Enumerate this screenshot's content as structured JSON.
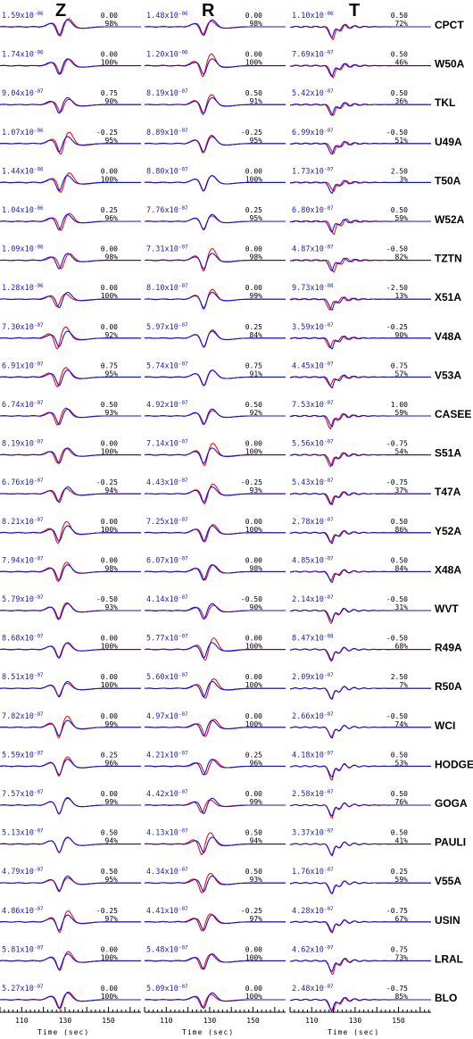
{
  "chart_data": {
    "type": "line",
    "components": [
      "Z",
      "R",
      "T"
    ],
    "xlabel": "Time (sec)",
    "x_ticks": [
      110,
      130,
      150
    ],
    "series_legend": [
      {
        "name": "",
        "color": "#1111ee"
      },
      {
        "name": "",
        "color": "#ee1111"
      }
    ],
    "stations": [
      {
        "name": "CPCT",
        "Z": {
          "amp": "1.59x10",
          "exp": "-06",
          "shift": "0.00",
          "fit": "98%"
        },
        "R": {
          "amp": "1.48x10",
          "exp": "-06",
          "shift": "0.00",
          "fit": "98%"
        },
        "T": {
          "amp": "1.10x10",
          "exp": "-06",
          "shift": "0.50",
          "fit": "72%"
        }
      },
      {
        "name": "W50A",
        "Z": {
          "amp": "1.74x10",
          "exp": "-06",
          "shift": "0.00",
          "fit": "100%"
        },
        "R": {
          "amp": "1.20x10",
          "exp": "-06",
          "shift": "0.00",
          "fit": "100%"
        },
        "T": {
          "amp": "7.69x10",
          "exp": "-07",
          "shift": "0.50",
          "fit": "46%"
        }
      },
      {
        "name": "TKL",
        "Z": {
          "amp": "9.04x10",
          "exp": "-07",
          "shift": "0.75",
          "fit": "90%"
        },
        "R": {
          "amp": "8.19x10",
          "exp": "-07",
          "shift": "0.50",
          "fit": "91%"
        },
        "T": {
          "amp": "5.42x10",
          "exp": "-07",
          "shift": "0.50",
          "fit": "36%"
        }
      },
      {
        "name": "U49A",
        "Z": {
          "amp": "1.07x10",
          "exp": "-06",
          "shift": "-0.25",
          "fit": "95%"
        },
        "R": {
          "amp": "8.89x10",
          "exp": "-07",
          "shift": "-0.25",
          "fit": "95%"
        },
        "T": {
          "amp": "6.99x10",
          "exp": "-07",
          "shift": "-0.50",
          "fit": "51%"
        }
      },
      {
        "name": "T50A",
        "Z": {
          "amp": "1.44x10",
          "exp": "-06",
          "shift": "0.00",
          "fit": "100%"
        },
        "R": {
          "amp": "8.80x10",
          "exp": "-07",
          "shift": "0.00",
          "fit": "100%"
        },
        "T": {
          "amp": "1.73x10",
          "exp": "-07",
          "shift": "2.50",
          "fit": "3%"
        }
      },
      {
        "name": "W52A",
        "Z": {
          "amp": "1.04x10",
          "exp": "-06",
          "shift": "0.25",
          "fit": "96%"
        },
        "R": {
          "amp": "7.76x10",
          "exp": "-07",
          "shift": "0.25",
          "fit": "95%"
        },
        "T": {
          "amp": "6.80x10",
          "exp": "-07",
          "shift": "0.50",
          "fit": "59%"
        }
      },
      {
        "name": "TZTN",
        "Z": {
          "amp": "1.09x10",
          "exp": "-06",
          "shift": "0.00",
          "fit": "98%"
        },
        "R": {
          "amp": "7.31x10",
          "exp": "-07",
          "shift": "0.00",
          "fit": "98%"
        },
        "T": {
          "amp": "4.87x10",
          "exp": "-07",
          "shift": "-0.50",
          "fit": "82%"
        }
      },
      {
        "name": "X51A",
        "Z": {
          "amp": "1.28x10",
          "exp": "-06",
          "shift": "0.00",
          "fit": "100%"
        },
        "R": {
          "amp": "8.10x10",
          "exp": "-07",
          "shift": "0.00",
          "fit": "99%"
        },
        "T": {
          "amp": "9.73x10",
          "exp": "-08",
          "shift": "-2.50",
          "fit": "13%"
        }
      },
      {
        "name": "V48A",
        "Z": {
          "amp": "7.30x10",
          "exp": "-07",
          "shift": "0.00",
          "fit": "92%"
        },
        "R": {
          "amp": "5.97x10",
          "exp": "-07",
          "shift": "0.25",
          "fit": "84%"
        },
        "T": {
          "amp": "3.59x10",
          "exp": "-07",
          "shift": "-0.25",
          "fit": "90%"
        }
      },
      {
        "name": "V53A",
        "Z": {
          "amp": "6.91x10",
          "exp": "-07",
          "shift": "0.75",
          "fit": "95%"
        },
        "R": {
          "amp": "5.74x10",
          "exp": "-07",
          "shift": "0.75",
          "fit": "91%"
        },
        "T": {
          "amp": "4.45x10",
          "exp": "-07",
          "shift": "0.75",
          "fit": "57%"
        }
      },
      {
        "name": "CASEE",
        "Z": {
          "amp": "6.74x10",
          "exp": "-07",
          "shift": "0.50",
          "fit": "93%"
        },
        "R": {
          "amp": "4.92x10",
          "exp": "-07",
          "shift": "0.50",
          "fit": "92%"
        },
        "T": {
          "amp": "7.53x10",
          "exp": "-07",
          "shift": "1.00",
          "fit": "59%"
        }
      },
      {
        "name": "S51A",
        "Z": {
          "amp": "8.19x10",
          "exp": "-07",
          "shift": "0.00",
          "fit": "100%"
        },
        "R": {
          "amp": "7.14x10",
          "exp": "-07",
          "shift": "0.00",
          "fit": "100%"
        },
        "T": {
          "amp": "5.56x10",
          "exp": "-07",
          "shift": "-0.75",
          "fit": "54%"
        }
      },
      {
        "name": "T47A",
        "Z": {
          "amp": "6.76x10",
          "exp": "-07",
          "shift": "-0.25",
          "fit": "94%"
        },
        "R": {
          "amp": "4.43x10",
          "exp": "-07",
          "shift": "-0.25",
          "fit": "93%"
        },
        "T": {
          "amp": "5.43x10",
          "exp": "-07",
          "shift": "-0.75",
          "fit": "37%"
        }
      },
      {
        "name": "Y52A",
        "Z": {
          "amp": "8.21x10",
          "exp": "-07",
          "shift": "0.00",
          "fit": "100%"
        },
        "R": {
          "amp": "7.25x10",
          "exp": "-07",
          "shift": "0.00",
          "fit": "100%"
        },
        "T": {
          "amp": "2.78x10",
          "exp": "-07",
          "shift": "0.50",
          "fit": "86%"
        }
      },
      {
        "name": "X48A",
        "Z": {
          "amp": "7.94x10",
          "exp": "-07",
          "shift": "0.00",
          "fit": "98%"
        },
        "R": {
          "amp": "6.07x10",
          "exp": "-07",
          "shift": "0.00",
          "fit": "98%"
        },
        "T": {
          "amp": "4.85x10",
          "exp": "-07",
          "shift": "0.50",
          "fit": "84%"
        }
      },
      {
        "name": "WVT",
        "Z": {
          "amp": "5.79x10",
          "exp": "-07",
          "shift": "-0.50",
          "fit": "93%"
        },
        "R": {
          "amp": "4.14x10",
          "exp": "-07",
          "shift": "-0.50",
          "fit": "90%"
        },
        "T": {
          "amp": "2.14x10",
          "exp": "-07",
          "shift": "-0.50",
          "fit": "31%"
        }
      },
      {
        "name": "R49A",
        "Z": {
          "amp": "8.68x10",
          "exp": "-07",
          "shift": "0.00",
          "fit": "100%"
        },
        "R": {
          "amp": "5.77x10",
          "exp": "-07",
          "shift": "0.00",
          "fit": "100%"
        },
        "T": {
          "amp": "8.47x10",
          "exp": "-08",
          "shift": "-0.50",
          "fit": "68%"
        }
      },
      {
        "name": "R50A",
        "Z": {
          "amp": "8.51x10",
          "exp": "-07",
          "shift": "0.00",
          "fit": "100%"
        },
        "R": {
          "amp": "5.60x10",
          "exp": "-07",
          "shift": "0.00",
          "fit": "100%"
        },
        "T": {
          "amp": "2.09x10",
          "exp": "-07",
          "shift": "2.50",
          "fit": "7%"
        }
      },
      {
        "name": "WCI",
        "Z": {
          "amp": "7.82x10",
          "exp": "-07",
          "shift": "0.00",
          "fit": "99%"
        },
        "R": {
          "amp": "4.97x10",
          "exp": "-07",
          "shift": "0.00",
          "fit": "100%"
        },
        "T": {
          "amp": "2.66x10",
          "exp": "-07",
          "shift": "-0.50",
          "fit": "74%"
        }
      },
      {
        "name": "HODGE",
        "Z": {
          "amp": "5.59x10",
          "exp": "-07",
          "shift": "0.25",
          "fit": "96%"
        },
        "R": {
          "amp": "4.21x10",
          "exp": "-07",
          "shift": "0.25",
          "fit": "96%"
        },
        "T": {
          "amp": "4.18x10",
          "exp": "-07",
          "shift": "0.50",
          "fit": "53%"
        }
      },
      {
        "name": "GOGA",
        "Z": {
          "amp": "7.57x10",
          "exp": "-07",
          "shift": "0.00",
          "fit": "99%"
        },
        "R": {
          "amp": "4.42x10",
          "exp": "-07",
          "shift": "0.00",
          "fit": "99%"
        },
        "T": {
          "amp": "2.58x10",
          "exp": "-07",
          "shift": "0.50",
          "fit": "76%"
        }
      },
      {
        "name": "PAULI",
        "Z": {
          "amp": "5.13x10",
          "exp": "-07",
          "shift": "0.50",
          "fit": "94%"
        },
        "R": {
          "amp": "4.13x10",
          "exp": "-07",
          "shift": "0.50",
          "fit": "94%"
        },
        "T": {
          "amp": "3.37x10",
          "exp": "-07",
          "shift": "0.50",
          "fit": "41%"
        }
      },
      {
        "name": "V55A",
        "Z": {
          "amp": "4.79x10",
          "exp": "-07",
          "shift": "0.50",
          "fit": "95%"
        },
        "R": {
          "amp": "4.34x10",
          "exp": "-07",
          "shift": "0.50",
          "fit": "93%"
        },
        "T": {
          "amp": "1.76x10",
          "exp": "-07",
          "shift": "0.25",
          "fit": "59%"
        }
      },
      {
        "name": "USIN",
        "Z": {
          "amp": "4.86x10",
          "exp": "-07",
          "shift": "-0.25",
          "fit": "97%"
        },
        "R": {
          "amp": "4.41x10",
          "exp": "-07",
          "shift": "-0.25",
          "fit": "97%"
        },
        "T": {
          "amp": "4.28x10",
          "exp": "-07",
          "shift": "-0.75",
          "fit": "67%"
        }
      },
      {
        "name": "LRAL",
        "Z": {
          "amp": "5.81x10",
          "exp": "-07",
          "shift": "0.00",
          "fit": "100%"
        },
        "R": {
          "amp": "5.48x10",
          "exp": "-07",
          "shift": "0.00",
          "fit": "100%"
        },
        "T": {
          "amp": "4.62x10",
          "exp": "-07",
          "shift": "0.75",
          "fit": "73%"
        }
      },
      {
        "name": "BLO",
        "Z": {
          "amp": "5.27x10",
          "exp": "-07",
          "shift": "0.00",
          "fit": "100%"
        },
        "R": {
          "amp": "5.09x10",
          "exp": "-07",
          "shift": "0.00",
          "fit": "100%"
        },
        "T": {
          "amp": "2.48x10",
          "exp": "-07",
          "shift": "-0.75",
          "fit": "85%"
        }
      }
    ]
  }
}
